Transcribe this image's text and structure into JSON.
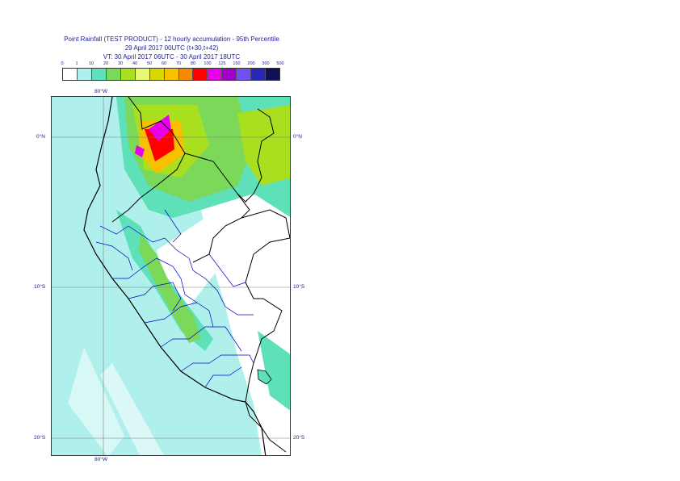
{
  "title": {
    "line1": "Point Rainfall (TEST PRODUCT) - 12 hourly accumulation - 95th Percentile",
    "line2": "29 April 2017 00UTC (t+30,t+42)",
    "line3": "VT: 30 April 2017 06UTC - 30 April 2017 18UTC"
  },
  "legend": {
    "ticks": [
      "0",
      "1",
      "10",
      "20",
      "30",
      "40",
      "50",
      "60",
      "70",
      "80",
      "100",
      "125",
      "150",
      "200",
      "300",
      "500"
    ],
    "colors": [
      "#ffffff",
      "#b0f0ec",
      "#5ee0b8",
      "#7cd858",
      "#a8e020",
      "#e8f870",
      "#d8d800",
      "#f8c000",
      "#f88800",
      "#ff0000",
      "#e800e8",
      "#a000c8",
      "#7050f0",
      "#2828b8",
      "#101058"
    ]
  },
  "map": {
    "labels": {
      "lon_top": "80°W",
      "lon_bottom": "80°W",
      "lat_0_left": "0°N",
      "lat_0_right": "0°N",
      "lat_10_left": "10°S",
      "lat_10_right": "10°S",
      "lat_20_left": "20°S",
      "lat_20_right": "20°S"
    },
    "border_color": "#000000",
    "admin_color": "#0000cc",
    "ocean_fill": "#b0f0ec"
  }
}
